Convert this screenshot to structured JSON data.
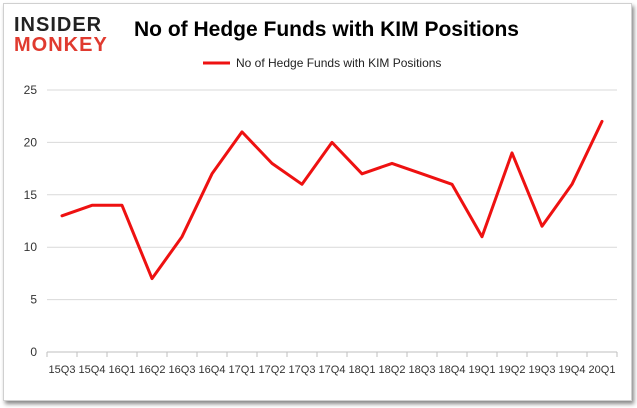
{
  "logo": {
    "line1": "INSIDER",
    "line2": "MONKEY"
  },
  "chart_data": {
    "type": "line",
    "title": "No of Hedge Funds with KIM Positions",
    "categories": [
      "15Q3",
      "15Q4",
      "16Q1",
      "16Q2",
      "16Q3",
      "16Q4",
      "17Q1",
      "17Q2",
      "17Q3",
      "17Q4",
      "18Q1",
      "18Q2",
      "18Q3",
      "18Q4",
      "19Q1",
      "19Q2",
      "19Q3",
      "19Q4",
      "20Q1"
    ],
    "series": [
      {
        "name": "No of Hedge Funds with KIM Positions",
        "values": [
          13,
          14,
          14,
          7,
          11,
          17,
          21,
          18,
          16,
          20,
          17,
          18,
          17,
          16,
          11,
          19,
          12,
          16,
          22
        ]
      }
    ],
    "ylim": [
      0,
      25
    ],
    "yticks": [
      0,
      5,
      10,
      15,
      20,
      25
    ],
    "grid": true,
    "legend": "top-center",
    "colors": {
      "line": "#ee1111",
      "grid": "#d9d9d9",
      "axis": "#bfbfbf"
    }
  }
}
